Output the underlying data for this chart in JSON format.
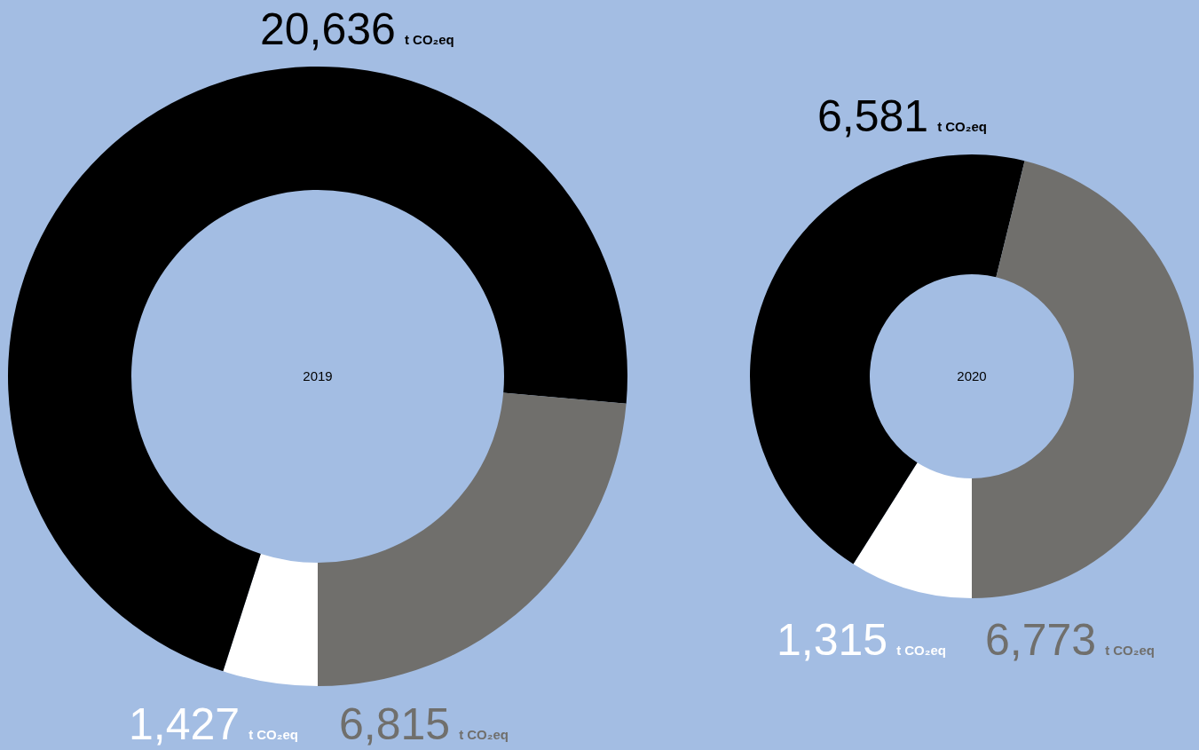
{
  "chart_data": [
    {
      "type": "donut",
      "title": "2019",
      "categories": [
        null,
        null,
        null
      ],
      "values": [
        1427,
        20636,
        6815
      ],
      "colors": [
        "#ffffff",
        "#000000",
        "#706f6c"
      ],
      "value_labels": [
        "1,427 t CO₂eq",
        "20,636 t CO₂eq",
        "6,815 t CO₂eq"
      ]
    },
    {
      "type": "donut",
      "title": "2020",
      "categories": [
        null,
        null,
        null
      ],
      "values": [
        1315,
        6581,
        6773
      ],
      "colors": [
        "#ffffff",
        "#000000",
        "#706f6c"
      ],
      "value_labels": [
        "1,315 t CO₂eq",
        "6,581 t CO₂eq",
        "6,773 t CO₂eq"
      ]
    }
  ]
}
